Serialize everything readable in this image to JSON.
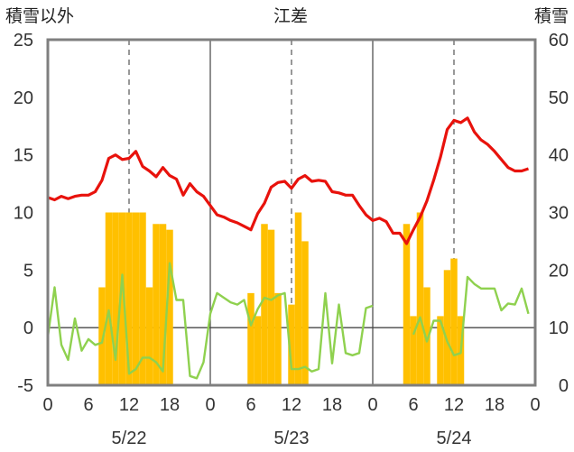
{
  "chart_data": {
    "type": "bar+line",
    "title": "江差",
    "ylabel_left": "積雪以外",
    "ylabel_right": "積雪",
    "ylim_left": [
      -5,
      25
    ],
    "ylim_right": [
      0,
      60
    ],
    "yticks_left": [
      -5,
      0,
      5,
      10,
      15,
      20,
      25
    ],
    "yticks_right": [
      0,
      10,
      20,
      30,
      40,
      50,
      60
    ],
    "xlim_hours": [
      0,
      72
    ],
    "xticks": [
      {
        "hour": 0,
        "label": "0"
      },
      {
        "hour": 6,
        "label": "6"
      },
      {
        "hour": 12,
        "label": "12"
      },
      {
        "hour": 18,
        "label": "18"
      },
      {
        "hour": 24,
        "label": "0"
      },
      {
        "hour": 30,
        "label": "6"
      },
      {
        "hour": 36,
        "label": "12"
      },
      {
        "hour": 42,
        "label": "18"
      },
      {
        "hour": 48,
        "label": "0"
      },
      {
        "hour": 54,
        "label": "6"
      },
      {
        "hour": 60,
        "label": "12"
      },
      {
        "hour": 66,
        "label": "18"
      },
      {
        "hour": 72,
        "label": "0"
      }
    ],
    "day_labels": [
      {
        "hour": 12,
        "label": "5/22"
      },
      {
        "hour": 36,
        "label": "5/23"
      },
      {
        "hour": 60,
        "label": "5/24"
      }
    ],
    "grid": "dashed vertical lines at 12:00 of each day; solid day separators",
    "colors": {
      "temperature": "#e8120c",
      "humidity_line": "#8fd14f",
      "bars": "#ffc000",
      "frame": "#7f7f7f"
    },
    "series": [
      {
        "kind": "line",
        "axis": "left",
        "color": "#e8120c",
        "x": [
          0,
          1,
          2,
          3,
          4,
          5,
          6,
          7,
          8,
          9,
          10,
          11,
          12,
          13,
          14,
          15,
          16,
          17,
          18,
          19,
          20,
          21,
          22,
          23,
          24,
          25,
          26,
          27,
          28,
          29,
          30,
          31,
          32,
          33,
          34,
          35,
          36,
          37,
          38,
          39,
          40,
          41,
          42,
          43,
          44,
          45,
          46,
          47,
          48,
          49,
          50,
          51,
          52,
          53,
          54,
          55,
          56,
          57,
          58,
          59,
          60,
          61,
          62,
          63,
          64,
          65,
          66,
          67,
          68,
          69,
          70,
          71
        ],
        "values": [
          11.3,
          11.1,
          11.4,
          11.2,
          11.4,
          11.5,
          11.5,
          11.8,
          12.8,
          14.7,
          15.0,
          14.6,
          14.7,
          15.3,
          14.0,
          13.6,
          13.1,
          13.9,
          13.2,
          12.9,
          11.5,
          12.5,
          11.8,
          11.4,
          10.6,
          9.8,
          9.6,
          9.3,
          9.1,
          8.8,
          8.5,
          9.9,
          10.8,
          12.2,
          12.6,
          12.7,
          12.1,
          12.9,
          13.2,
          12.7,
          12.8,
          12.7,
          11.8,
          11.7,
          11.5,
          11.5,
          10.6,
          9.8,
          9.3,
          9.5,
          9.2,
          8.2,
          8.2,
          7.3,
          8.5,
          9.6,
          11.0,
          12.8,
          14.8,
          17.2,
          18.0,
          17.8,
          18.2,
          17.0,
          16.3,
          15.9,
          15.3,
          14.6,
          13.9,
          13.6,
          13.6,
          13.8
        ]
      },
      {
        "kind": "line",
        "axis": "left",
        "color": "#8fd14f",
        "segments": [
          {
            "x": [
              0,
              1,
              2,
              3,
              4,
              5,
              6,
              7,
              8,
              9,
              10,
              11,
              12,
              13,
              14,
              15,
              16,
              17,
              18,
              19,
              20,
              21,
              22,
              23,
              24,
              25,
              26,
              27,
              28,
              29,
              30,
              31,
              32,
              33,
              34,
              35,
              36,
              37,
              38,
              39,
              40,
              41,
              42,
              43,
              44,
              45,
              46,
              47,
              48
            ],
            "values": [
              -0.8,
              3.5,
              -1.5,
              -2.8,
              0.8,
              -2.0,
              -1.0,
              -1.5,
              -1.3,
              1.5,
              -2.8,
              4.6,
              -4.0,
              -3.6,
              -2.6,
              -2.6,
              -3.0,
              -3.8,
              5.6,
              2.4,
              2.4,
              -4.2,
              -4.4,
              -3.0,
              1.2,
              3.0,
              2.6,
              2.2,
              2.0,
              2.4,
              0.2,
              1.6,
              2.6,
              2.4,
              2.8,
              3.0,
              -3.6,
              -3.6,
              -3.4,
              -3.8,
              -3.6,
              3.0,
              -3.1,
              2.0,
              -2.2,
              -2.4,
              -2.2,
              1.7,
              1.9
            ]
          },
          {
            "x": [
              54,
              55,
              56,
              57,
              58,
              59,
              60,
              61,
              62,
              63,
              64,
              65,
              66,
              67,
              68,
              69,
              70,
              71
            ],
            "values": [
              -0.6,
              0.9,
              -1.2,
              0.6,
              0.6,
              -1.2,
              -2.4,
              -2.2,
              4.4,
              3.8,
              3.4,
              3.4,
              3.4,
              1.5,
              2.1,
              2.0,
              3.4,
              1.2
            ]
          }
        ]
      },
      {
        "kind": "bar",
        "axis": "right",
        "color": "#ffc000",
        "x": [
          8,
          9,
          10,
          11,
          12,
          13,
          14,
          15,
          16,
          17,
          18,
          19,
          30,
          31,
          32,
          33,
          34,
          36,
          37,
          38,
          53,
          54,
          55,
          56,
          57,
          58,
          59,
          60,
          61,
          62
        ],
        "values": [
          17,
          30,
          30,
          30,
          30,
          30,
          30,
          17,
          28,
          28,
          27,
          0,
          16,
          12,
          28,
          27,
          16,
          14,
          30,
          25,
          28,
          12,
          30,
          17,
          0,
          12,
          20,
          22,
          12,
          0
        ]
      }
    ]
  }
}
